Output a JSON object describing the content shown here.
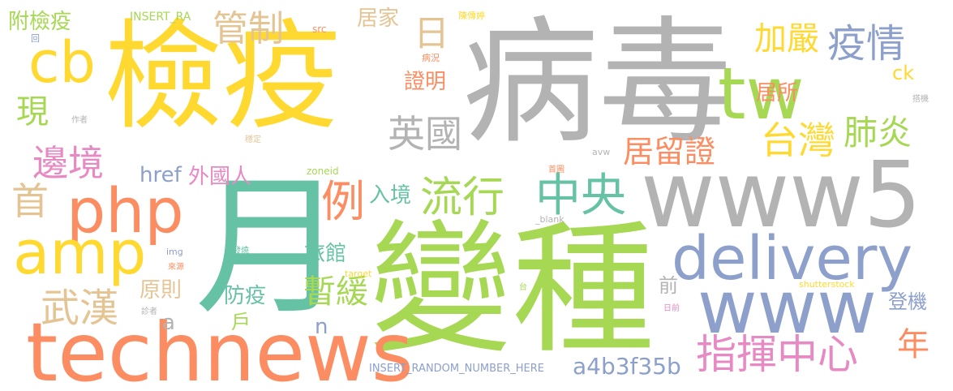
{
  "colors": {
    "gray": "#b3b3b3",
    "yellow": "#ffd92f",
    "green": "#a6d854",
    "orange": "#fc8d62",
    "blue": "#8da0cb",
    "tan": "#e5c494",
    "teal": "#66c2a5",
    "pink": "#e78ac3"
  },
  "words": [
    {
      "id": "w-bingdu",
      "text": "病毒"
    },
    {
      "id": "w-jianyi",
      "text": "檢疫"
    },
    {
      "id": "w-yue",
      "text": "月"
    },
    {
      "id": "w-bianzhong",
      "text": "變種"
    },
    {
      "id": "w-technews",
      "text": "technews"
    },
    {
      "id": "w-www5",
      "text": "www5"
    },
    {
      "id": "w-delivery",
      "text": "delivery"
    },
    {
      "id": "w-www",
      "text": "www"
    },
    {
      "id": "w-php",
      "text": "php"
    },
    {
      "id": "w-amp",
      "text": "amp"
    },
    {
      "id": "w-tw",
      "text": "tw"
    },
    {
      "id": "w-cb",
      "text": "cb"
    },
    {
      "id": "w-zhihui",
      "text": "指揮中心"
    },
    {
      "id": "w-liuxing",
      "text": "流行"
    },
    {
      "id": "w-zhongyang",
      "text": "中央"
    },
    {
      "id": "w-wuhan",
      "text": "武漢"
    },
    {
      "id": "w-yingguo",
      "text": "英國"
    },
    {
      "id": "w-taiwan",
      "text": "台灣"
    },
    {
      "id": "w-jiayan",
      "text": "加嚴"
    },
    {
      "id": "w-yiqing",
      "text": "疫情"
    },
    {
      "id": "w-guanzhi",
      "text": "管制"
    },
    {
      "id": "w-feiyan",
      "text": "肺炎"
    },
    {
      "id": "w-bianjing",
      "text": "邊境"
    },
    {
      "id": "w-juliuzheng",
      "text": "居留證"
    },
    {
      "id": "w-li",
      "text": "例"
    },
    {
      "id": "w-shou",
      "text": "首"
    },
    {
      "id": "w-xian",
      "text": "現"
    },
    {
      "id": "w-ri",
      "text": "日"
    },
    {
      "id": "w-zanhuan",
      "text": "暫緩"
    },
    {
      "id": "w-nian",
      "text": "年"
    },
    {
      "id": "w-a4b3",
      "text": "a4b3f35b"
    },
    {
      "id": "w-fujianyi",
      "text": "附檢疫"
    },
    {
      "id": "w-jujia",
      "text": "居家"
    },
    {
      "id": "w-zhengming",
      "text": "證明"
    },
    {
      "id": "w-jusuo",
      "text": "居所"
    },
    {
      "id": "w-href",
      "text": "href"
    },
    {
      "id": "w-waiguoren",
      "text": "外國人"
    },
    {
      "id": "w-rujing",
      "text": "入境"
    },
    {
      "id": "w-lvguan",
      "text": "旅館"
    },
    {
      "id": "w-fangyi",
      "text": "防疫"
    },
    {
      "id": "w-yuanze",
      "text": "原則"
    },
    {
      "id": "w-qian",
      "text": "前"
    },
    {
      "id": "w-dengji",
      "text": "登機"
    },
    {
      "id": "w-ck",
      "text": "ck"
    },
    {
      "id": "w-a",
      "text": "a"
    },
    {
      "id": "w-n",
      "text": "n"
    },
    {
      "id": "w-hu",
      "text": "戶"
    },
    {
      "id": "w-insert-ra",
      "text": "INSERT_RA"
    },
    {
      "id": "w-insert-full",
      "text": "INSERT_RANDOM_NUMBER_HERE"
    },
    {
      "id": "w-src",
      "text": "src"
    },
    {
      "id": "w-chenshi",
      "text": "陳傳婷"
    },
    {
      "id": "w-bingkuang",
      "text": "病況"
    },
    {
      "id": "w-hui",
      "text": "回"
    },
    {
      "id": "w-zuozhe",
      "text": "作者"
    },
    {
      "id": "w-wending",
      "text": "穩定"
    },
    {
      "id": "w-avw",
      "text": "avw"
    },
    {
      "id": "w-zoneid",
      "text": "zoneid"
    },
    {
      "id": "w-shouye",
      "text": "首圖"
    },
    {
      "id": "w-blank",
      "text": "_blank"
    },
    {
      "id": "w-img",
      "text": "img"
    },
    {
      "id": "w-fashao",
      "text": "發燒"
    },
    {
      "id": "w-target",
      "text": "target"
    },
    {
      "id": "w-laiyuan",
      "text": "來源"
    },
    {
      "id": "w-zhenzhe",
      "text": "診者"
    },
    {
      "id": "w-tai",
      "text": "台"
    },
    {
      "id": "w-shutterstock",
      "text": "shutterstock"
    },
    {
      "id": "w-rimu",
      "text": "日前"
    },
    {
      "id": "w-daji",
      "text": "搭機"
    }
  ]
}
